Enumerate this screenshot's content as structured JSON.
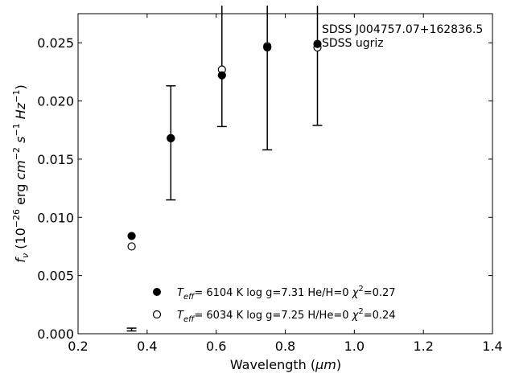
{
  "chart_data": {
    "type": "scatter",
    "xlabel_main": "Wavelength (",
    "xlabel_unit": "μm",
    "xlabel_close": ")",
    "ylabel_parts": [
      "f",
      "ν",
      " (10",
      "−26",
      " erg ",
      "cm",
      "−2",
      " ",
      "s",
      "−1",
      " ",
      "Hz",
      "−1",
      ")"
    ],
    "xlim": [
      0.2,
      1.4
    ],
    "ylim": [
      0.0,
      0.0275
    ],
    "xticks": [
      0.2,
      0.4,
      0.6,
      0.8,
      1.0,
      1.2,
      1.4
    ],
    "xtick_labels": [
      "0.2",
      "0.4",
      "0.6",
      "0.8",
      "1.0",
      "1.2",
      "1.4"
    ],
    "yticks": [
      0.0,
      0.005,
      0.01,
      0.015,
      0.02,
      0.025
    ],
    "ytick_labels": [
      "0.000",
      "0.005",
      "0.010",
      "0.015",
      "0.020",
      "0.025"
    ],
    "annotation": [
      "SDSS J004757.07+162836.5",
      "SDSS ugriz"
    ],
    "observed": {
      "x": [
        0.3551,
        0.4686,
        0.6166,
        0.748,
        0.8932
      ],
      "y": [
        0.00036,
        0.0164,
        0.0259,
        0.0296,
        0.0268
      ],
      "err": [
        0.00012,
        0.0049,
        0.0081,
        0.0138,
        0.0089
      ],
      "color": "#000000"
    },
    "series": [
      {
        "name": "Teff= 6104 K log g=7.31 He/H=0 χ2=0.27",
        "marker": "filled",
        "x": [
          0.3551,
          0.4686,
          0.6166,
          0.748,
          0.8932
        ],
        "y": [
          0.0084,
          0.0168,
          0.0222,
          0.0246,
          0.0249
        ]
      },
      {
        "name": "Teff= 6034 K log g=7.25 H/He=0 χ2=0.24",
        "marker": "open",
        "x": [
          0.3551,
          0.4686,
          0.6166,
          0.748,
          0.8932
        ],
        "y": [
          0.0075,
          0.0168,
          0.0227,
          0.0247,
          0.0246
        ]
      }
    ],
    "legend": {
      "placement": "lower-center",
      "entries": [
        {
          "teff_label": "T",
          "teff_sub": "eff",
          "teff_eq": "=  6104 K  log g=7.31  He/H=0  ",
          "chi": "χ",
          "chi_sup": "2",
          "chi_val": "=0.27"
        },
        {
          "teff_label": "T",
          "teff_sub": "eff",
          "teff_eq": "=  6034 K  log g=7.25  H/He=0  ",
          "chi": "χ",
          "chi_sup": "2",
          "chi_val": "=0.24"
        }
      ]
    },
    "grid": false
  }
}
